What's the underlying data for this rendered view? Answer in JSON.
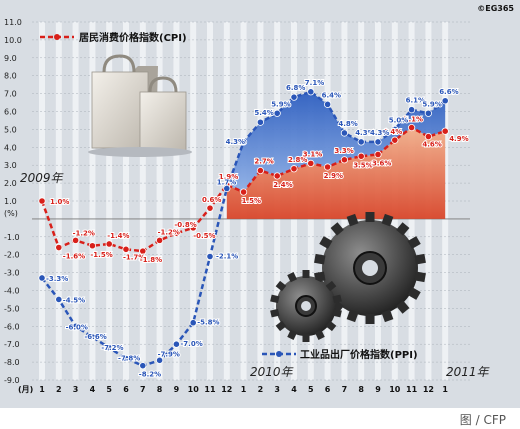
{
  "watermark": "©EG365",
  "credit": "图 / CFP",
  "chart_data": {
    "type": "line",
    "ylabel": "(%)",
    "ylim": [
      -9.0,
      11.0
    ],
    "yticks": [
      "11.0",
      "10.0",
      "9.0",
      "8.0",
      "7.0",
      "6.0",
      "5.0",
      "4.0",
      "3.0",
      "2.0",
      "1.0",
      "",
      "-1.0",
      "-2.0",
      "-3.0",
      "-4.0",
      "-5.0",
      "-6.0",
      "-7.0",
      "-8.0",
      "-9.0"
    ],
    "ytick_values": [
      11,
      10,
      9,
      8,
      7,
      6,
      5,
      4,
      3,
      2,
      1,
      0,
      -1,
      -2,
      -3,
      -4,
      -5,
      -6,
      -7,
      -8,
      -9
    ],
    "month_axis_prefix": "(月)",
    "categories": [
      "1",
      "2",
      "3",
      "4",
      "5",
      "6",
      "7",
      "8",
      "9",
      "10",
      "11",
      "12",
      "1",
      "2",
      "3",
      "4",
      "5",
      "6",
      "7",
      "8",
      "9",
      "10",
      "11",
      "12",
      "1"
    ],
    "year_labels": [
      {
        "text": "2009年",
        "index": 1
      },
      {
        "text": "2010年",
        "index": 13
      },
      {
        "text": "2011年",
        "index": 24
      }
    ],
    "series": [
      {
        "name": "居民消费价格指数(CPI)",
        "color": "#d8201a",
        "values": [
          1.0,
          -1.6,
          -1.2,
          -1.5,
          -1.4,
          -1.7,
          -1.8,
          -1.2,
          -0.8,
          -0.5,
          0.6,
          1.9,
          1.5,
          2.7,
          2.4,
          2.8,
          3.1,
          2.9,
          3.3,
          3.5,
          3.6,
          4.4,
          5.1,
          4.6,
          4.9
        ],
        "labels": [
          "1.0%",
          "-1.6%",
          "-1.2%",
          "-1.5%",
          "-1.4%",
          "-1.7%",
          "-1.8%",
          "-1.2%",
          "-0.8%",
          "-0.5%",
          "0.6%",
          "1.9%",
          "1.5%",
          "2.7%",
          "2.4%",
          "2.8%",
          "3.1%",
          "2.9%",
          "3.3%",
          "3.5%",
          "3.6%",
          "4.4%",
          "5.1%",
          "4.6%",
          "4.9%"
        ]
      },
      {
        "name": "工业品出厂价格指数(PPI)",
        "color": "#2a56b8",
        "values": [
          -3.3,
          -4.5,
          -6.0,
          -6.6,
          -7.2,
          -7.8,
          -8.2,
          -7.9,
          -7.0,
          -5.8,
          -2.1,
          1.7,
          4.3,
          5.4,
          5.9,
          6.8,
          7.1,
          6.4,
          4.8,
          4.3,
          4.3,
          5.0,
          6.1,
          5.9,
          6.6
        ],
        "labels": [
          "-3.3%",
          "-4.5%",
          "-6.0%",
          "-6.6%",
          "-7.2%",
          "-7.8%",
          "-8.2%",
          "-7.9%",
          "-7.0%",
          "-5.8%",
          "-2.1%",
          "1.7%",
          "4.3%",
          "5.4%",
          "5.9%",
          "6.8%",
          "7.1%",
          "6.4%",
          "4.8%",
          "4.3%",
          "4.3%",
          "5.0%",
          "6.1%",
          "5.9%",
          "6.6%"
        ]
      }
    ],
    "grid": true,
    "legend": [
      {
        "text": "居民消费价格指数(CPI)",
        "position": "top-left"
      },
      {
        "text": "工业品出厂价格指数(PPI)",
        "position": "bottom-right"
      }
    ]
  }
}
